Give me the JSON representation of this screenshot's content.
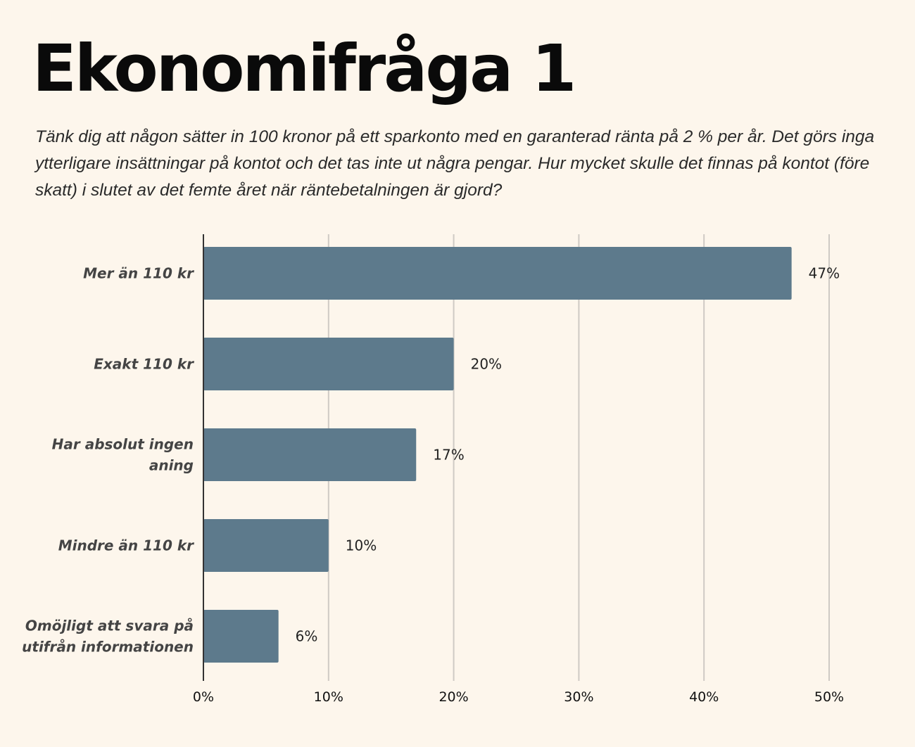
{
  "chart_data": {
    "type": "bar",
    "orientation": "horizontal",
    "title": "Ekonomifråga 1",
    "subtitle": "Tänk dig att någon sätter in 100 kronor på ett sparkonto med en garanterad ränta på 2 % per år. Det görs inga ytterligare insättningar på kontot och det tas inte ut några pengar. Hur mycket skulle det finnas på kontot (före skatt) i slutet av det femte året när räntebetalningen är gjord?",
    "categories": [
      [
        "Mer än 110 kr"
      ],
      [
        "Exakt 110 kr"
      ],
      [
        "Har absolut ingen",
        "aning"
      ],
      [
        "Mindre än 110 kr"
      ],
      [
        "Omöjligt att svara på",
        "utifrån informationen"
      ]
    ],
    "values": [
      47,
      20,
      17,
      10,
      6
    ],
    "data_labels": [
      "47%",
      "20%",
      "17%",
      "10%",
      "6%"
    ],
    "xlim": [
      0,
      50
    ],
    "xticks": [
      0,
      10,
      20,
      30,
      40,
      50
    ],
    "xtick_labels": [
      "0%",
      "10%",
      "20%",
      "30%",
      "40%",
      "50%"
    ],
    "xlabel": "",
    "ylabel": "",
    "grid": true,
    "bar_color": "#5d7a8c"
  }
}
